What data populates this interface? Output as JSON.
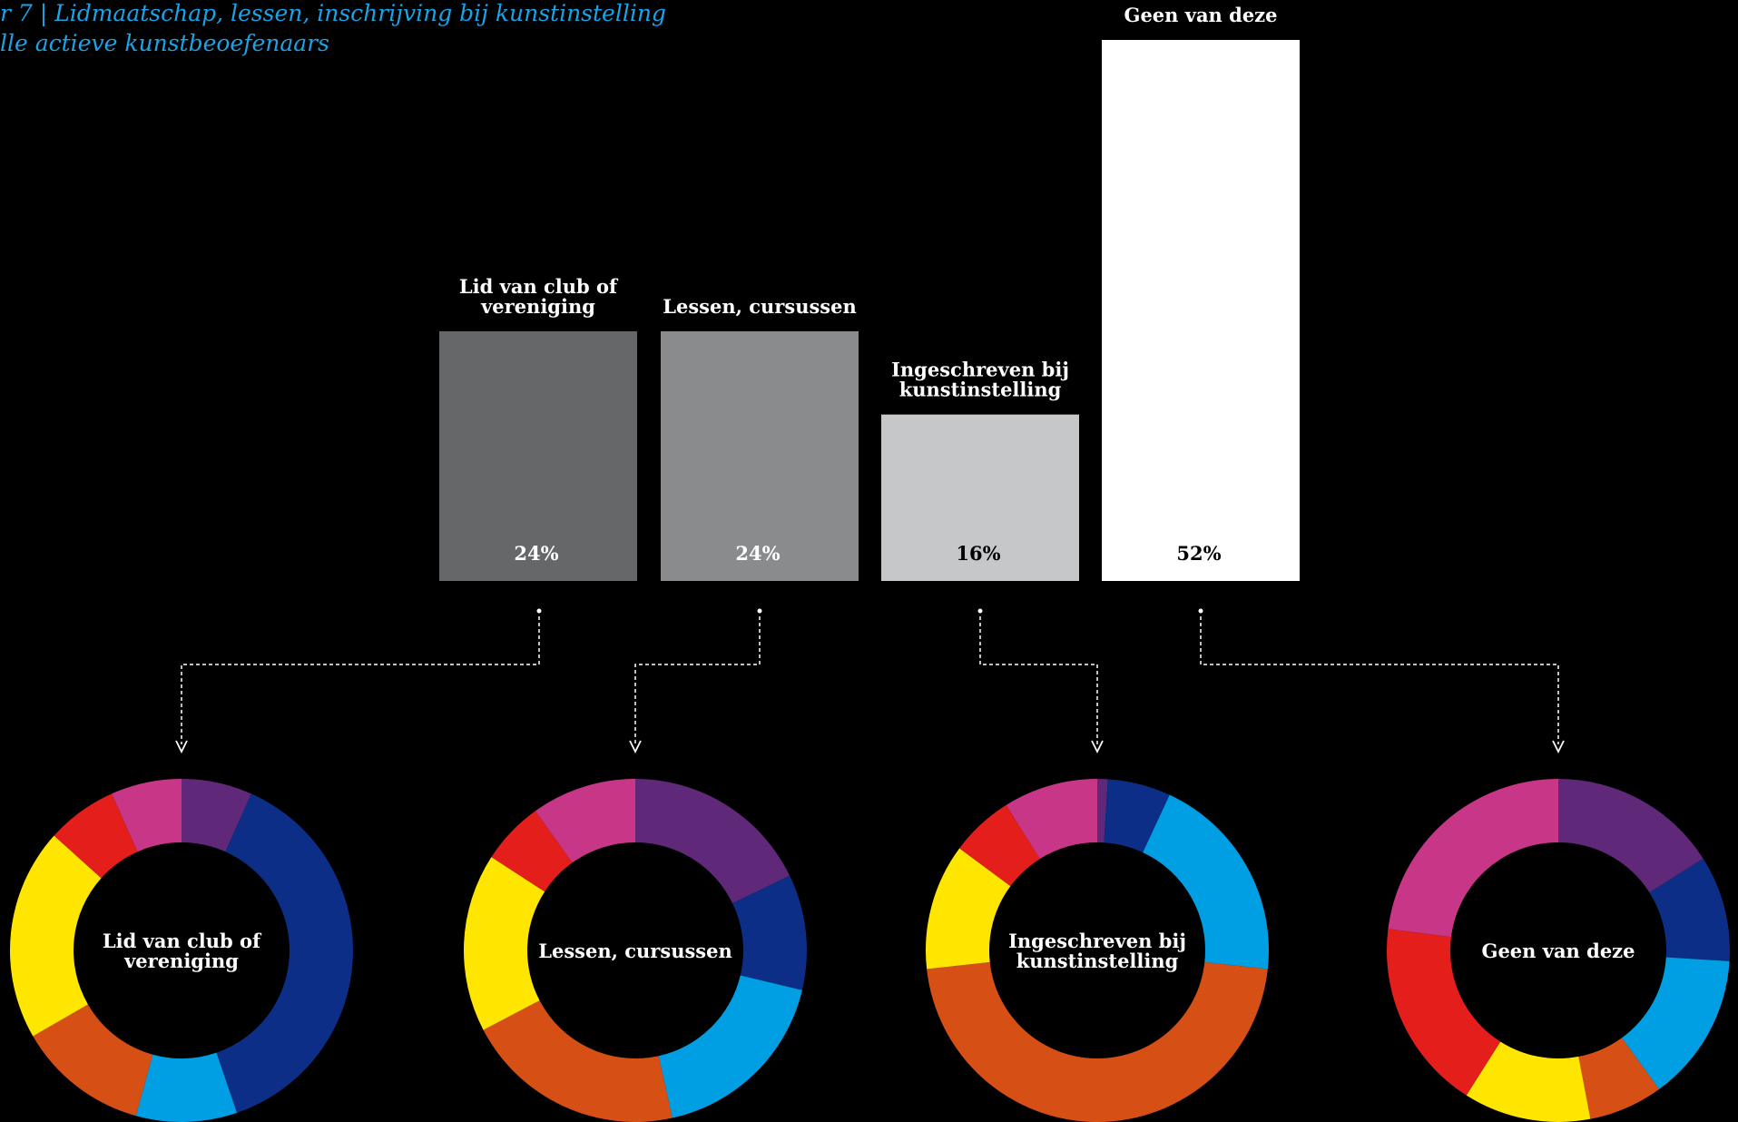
{
  "title": {
    "line1": "r 7  |  Lidmaatschap, lessen, inschrijving bij kunstinstelling",
    "line2": "lle actieve kunstbeoefenaars"
  },
  "chart_data": [
    {
      "type": "bar",
      "categories": [
        "Lid van club of vereniging",
        "Lessen, cursussen",
        "Ingeschreven bij kunstinstelling",
        "Geen van deze"
      ],
      "label_lines": [
        [
          "Lid van club of",
          "vereniging"
        ],
        [
          "Lessen, cursussen"
        ],
        [
          "Ingeschreven bij",
          "kunstinstelling"
        ],
        [
          "Geen van deze"
        ]
      ],
      "values": [
        24,
        24,
        16,
        52
      ],
      "value_labels": [
        "24%",
        "24%",
        "16%",
        "52%"
      ],
      "colors": [
        "#666768",
        "#8a8b8c",
        "#c6c7c8",
        "#ffffff"
      ],
      "ylim": [
        0,
        52
      ],
      "grid": false
    },
    {
      "type": "pie",
      "variant": "donut",
      "charts": [
        {
          "center_lines": [
            "Lid van club of",
            "vereniging"
          ],
          "values": [
            7,
            40,
            10,
            13,
            21,
            7,
            7
          ]
        },
        {
          "center_lines": [
            "Lessen, cursussen"
          ],
          "values": [
            18,
            11,
            18,
            21,
            17,
            6,
            10
          ]
        },
        {
          "center_lines": [
            "Ingeschreven bij",
            "kunstinstelling"
          ],
          "values": [
            1,
            6,
            20,
            47,
            12,
            6,
            9
          ]
        },
        {
          "center_lines": [
            "Geen van deze"
          ],
          "values": [
            16,
            10,
            14,
            7,
            12,
            18,
            23
          ]
        }
      ],
      "segment_colors": [
        "#5f2878",
        "#0d2e86",
        "#009fe3",
        "#d65016",
        "#ffe600",
        "#e31e1b",
        "#c83787"
      ]
    }
  ]
}
